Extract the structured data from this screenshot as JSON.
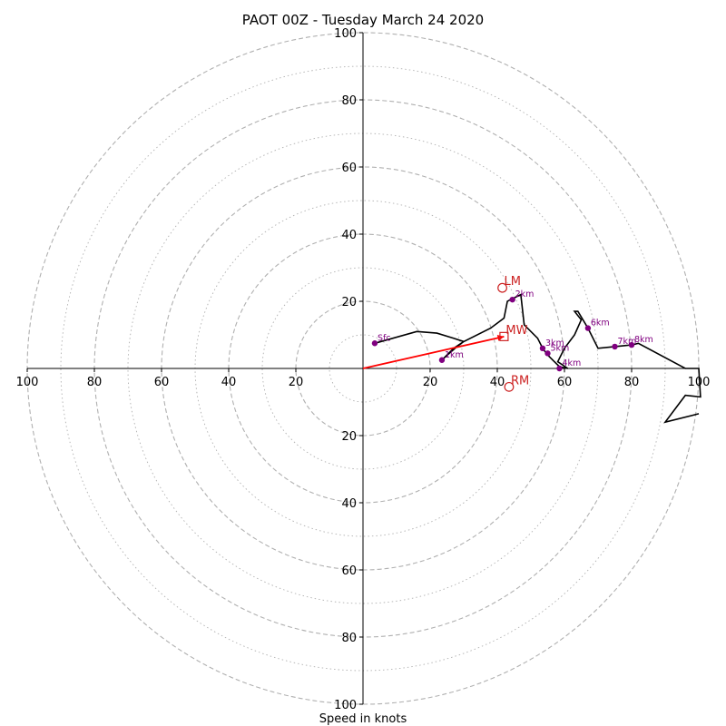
{
  "chart_data": {
    "type": "hodograph",
    "title": "PAOT 00Z - Tuesday March 24 2020",
    "xlabel": "Speed in knots",
    "xlim": [
      -100,
      100
    ],
    "ylim": [
      -100,
      100
    ],
    "rings_major": [
      20,
      40,
      60,
      80,
      100
    ],
    "rings_minor": [
      10,
      30,
      50,
      70,
      90
    ],
    "tick_labels": [
      "100",
      "80",
      "60",
      "40",
      "20",
      "20",
      "40",
      "60",
      "80",
      "100"
    ],
    "tick_values": [
      -100,
      -80,
      -60,
      -40,
      -20,
      20,
      40,
      60,
      80,
      100
    ],
    "colors": {
      "trace": "#000000",
      "height_marker": "#800080",
      "storm_motion": "#cc2222",
      "mean_wind_vector": "#ff0000",
      "ring": "#b0b0b0"
    },
    "trace": [
      [
        3.5,
        7.5
      ],
      [
        16,
        11
      ],
      [
        22,
        10.5
      ],
      [
        27,
        9
      ],
      [
        30,
        8
      ],
      [
        27,
        6
      ],
      [
        24,
        3
      ],
      [
        28,
        6.5
      ],
      [
        30,
        8
      ],
      [
        38,
        12
      ],
      [
        42,
        15
      ],
      [
        43,
        20
      ],
      [
        44,
        20.5
      ],
      [
        47,
        22
      ],
      [
        48,
        13
      ],
      [
        52,
        9
      ],
      [
        53.5,
        6
      ],
      [
        55,
        4
      ],
      [
        57,
        2
      ],
      [
        58.5,
        0.5
      ],
      [
        61,
        0
      ],
      [
        58,
        2
      ],
      [
        60,
        6
      ],
      [
        63,
        10
      ],
      [
        65,
        14.5
      ],
      [
        63,
        17
      ],
      [
        64,
        17
      ],
      [
        67,
        12
      ],
      [
        70,
        6
      ],
      [
        75,
        6.5
      ],
      [
        80,
        7
      ],
      [
        82,
        7.5
      ],
      [
        96,
        0
      ],
      [
        100,
        0
      ],
      [
        100.5,
        -8.5
      ],
      [
        96,
        -8
      ],
      [
        90,
        -16
      ],
      [
        100,
        -13.5
      ]
    ],
    "height_markers": [
      {
        "label": "Sfc",
        "u": 3.5,
        "v": 7.5
      },
      {
        "label": "1km",
        "u": 23.5,
        "v": 2.5
      },
      {
        "label": "2km",
        "u": 44.5,
        "v": 20.5
      },
      {
        "label": "3km",
        "u": 53.5,
        "v": 6
      },
      {
        "label": "5km",
        "u": 55,
        "v": 4.5
      },
      {
        "label": "4km",
        "u": 58.5,
        "v": 0
      },
      {
        "label": "6km",
        "u": 67,
        "v": 12
      },
      {
        "label": "7km",
        "u": 75,
        "v": 6.5
      },
      {
        "label": "8km",
        "u": 80,
        "v": 7
      }
    ],
    "storm_motions": [
      {
        "label": "LM",
        "u": 41.5,
        "v": 24,
        "marker": "circle"
      },
      {
        "label": "MW",
        "u": 42,
        "v": 9.5,
        "marker": "square"
      },
      {
        "label": "RM",
        "u": 43.5,
        "v": -5.5,
        "marker": "circle"
      }
    ],
    "mean_wind_vector": {
      "u": 42,
      "v": 9.5
    }
  }
}
